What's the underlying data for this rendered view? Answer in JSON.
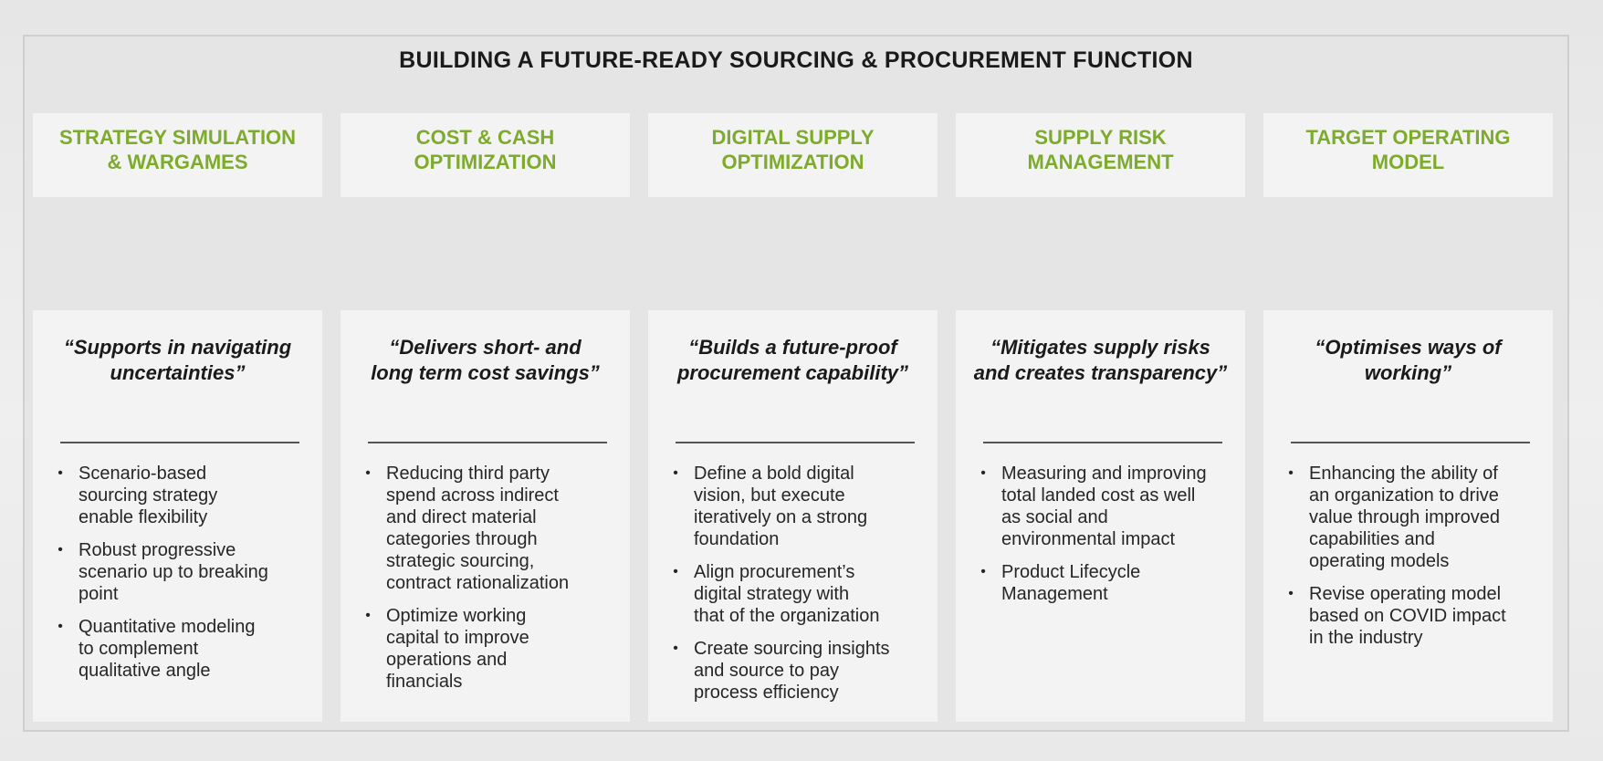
{
  "slide": {
    "title": "BUILDING A FUTURE-READY SOURCING & PROCUREMENT FUNCTION",
    "accent_color": "#7dab2b",
    "columns": [
      {
        "title_lines": [
          "STRATEGY SIMULATION",
          "& WARGAMES"
        ],
        "quote_lines": [
          "“Supports in navigating",
          "uncertainties”"
        ],
        "bullets": [
          [
            "Scenario-based",
            "sourcing strategy",
            "enable flexibility"
          ],
          [
            "Robust progressive",
            "scenario up to breaking",
            "point"
          ],
          [
            "Quantitative modeling",
            "to complement",
            "qualitative angle"
          ]
        ]
      },
      {
        "title_lines": [
          "COST & CASH",
          "OPTIMIZATION"
        ],
        "quote_lines": [
          "“Delivers short- and",
          "long term cost savings”"
        ],
        "bullets": [
          [
            "Reducing third party",
            "spend across indirect",
            "and direct material",
            "categories through",
            "strategic sourcing,",
            "contract rationalization"
          ],
          [
            "Optimize working",
            "capital to improve",
            "operations and",
            "financials"
          ]
        ]
      },
      {
        "title_lines": [
          "DIGITAL SUPPLY",
          "OPTIMIZATION"
        ],
        "quote_lines": [
          "“Builds a future-proof",
          "procurement capability”"
        ],
        "bullets": [
          [
            "Define a bold digital",
            "vision, but execute",
            "iteratively on a strong",
            "foundation"
          ],
          [
            "Align procurement’s",
            "digital strategy with",
            "that of the organization"
          ],
          [
            "Create sourcing insights",
            "and source to pay",
            "process efficiency"
          ]
        ]
      },
      {
        "title_lines": [
          "SUPPLY RISK",
          "MANAGEMENT"
        ],
        "quote_lines": [
          "“Mitigates supply risks",
          "and creates transparency”"
        ],
        "bullets": [
          [
            "Measuring and improving",
            "total landed cost as well",
            "as social and",
            "environmental impact"
          ],
          [
            "Product Lifecycle",
            "Management"
          ]
        ]
      },
      {
        "title_lines": [
          "TARGET OPERATING",
          "MODEL"
        ],
        "quote_lines": [
          "“Optimises ways of",
          "working”"
        ],
        "bullets": [
          [
            "Enhancing the ability of",
            "an organization to drive",
            "value through improved",
            "capabilities and",
            "operating models"
          ],
          [
            "Revise operating model",
            "based on COVID impact",
            "in the industry"
          ]
        ]
      }
    ]
  }
}
